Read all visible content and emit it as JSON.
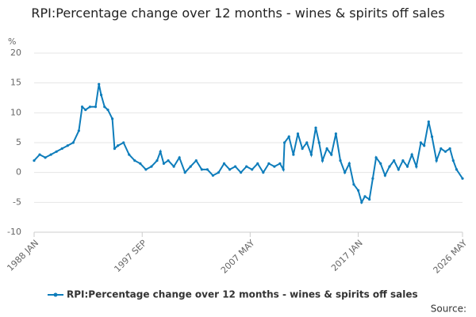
{
  "chart_data": {
    "type": "line",
    "title": "RPI:Percentage change over 12 months - wines & spirits off sales",
    "y_label": "%",
    "source": "Source:",
    "ylim": [
      -10,
      20
    ],
    "yticks": [
      -10,
      -5,
      0,
      5,
      10,
      15,
      20
    ],
    "xlim": [
      1988,
      2026.33
    ],
    "xticks": [
      {
        "value": 1988,
        "label": "1988 JAN"
      },
      {
        "value": 1997.67,
        "label": "1997 SEP"
      },
      {
        "value": 2007.33,
        "label": "2007 MAY"
      },
      {
        "value": 2017,
        "label": "2017 JAN"
      },
      {
        "value": 2026.33,
        "label": "2026 MAY"
      }
    ],
    "grid": true,
    "legend": "bottom",
    "x": [
      1988,
      1988.5,
      1989,
      1989.5,
      1990,
      1990.5,
      1991,
      1991.5,
      1992,
      1992.3,
      1992.6,
      1993,
      1993.5,
      1993.8,
      1994,
      1994.3,
      1994.6,
      1995,
      1995.2,
      1995.5,
      1996,
      1996.5,
      1997,
      1997.5,
      1998,
      1998.5,
      1999,
      1999.3,
      1999.6,
      2000,
      2000.5,
      2001,
      2001.5,
      2002,
      2002.5,
      2003,
      2003.5,
      2004,
      2004.5,
      2005,
      2005.5,
      2006,
      2006.5,
      2007,
      2007.5,
      2008,
      2008.5,
      2009,
      2009.5,
      2010,
      2010.3,
      2010.4,
      2010.8,
      2011.2,
      2011.6,
      2012,
      2012.4,
      2012.8,
      2013.2,
      2013.5,
      2013.8,
      2014.2,
      2014.6,
      2015,
      2015.4,
      2015.8,
      2016.2,
      2016.6,
      2017,
      2017.3,
      2017.6,
      2018,
      2018.3,
      2018.6,
      2019,
      2019.4,
      2019.8,
      2020.2,
      2020.6,
      2021,
      2021.4,
      2021.8,
      2022.2,
      2022.6,
      2022.9,
      2023.3,
      2023.6,
      2024,
      2024.4,
      2024.8,
      2025.2,
      2025.5,
      2025.8,
      2026.33
    ],
    "series": [
      {
        "name": "RPI:Percentage change over 12 months - wines & spirits off sales",
        "color": "#0e7dbb",
        "values": [
          2,
          3,
          2.5,
          3,
          3.5,
          4,
          4.5,
          5,
          7,
          11,
          10.5,
          11,
          11,
          14.8,
          13,
          11,
          10.5,
          9,
          4,
          4.5,
          5,
          3,
          2,
          1.5,
          0.5,
          1,
          2,
          3.5,
          1.5,
          2,
          1,
          2.5,
          0,
          1,
          2,
          0.5,
          0.5,
          -0.5,
          0,
          1.5,
          0.5,
          1,
          0,
          1,
          0.5,
          1.5,
          0,
          1.5,
          1,
          1.5,
          0.5,
          5,
          6,
          3,
          6.5,
          4,
          5,
          3,
          7.5,
          5,
          2,
          4,
          3,
          6.5,
          2,
          0,
          1.5,
          -2,
          -3,
          -5,
          -4,
          -4.5,
          -1,
          2.5,
          1.5,
          -0.5,
          1,
          2,
          0.5,
          2,
          1,
          3,
          1,
          5,
          4.5,
          8.5,
          6,
          2,
          4,
          3.5,
          4,
          2,
          0.5,
          -1
        ]
      }
    ]
  }
}
